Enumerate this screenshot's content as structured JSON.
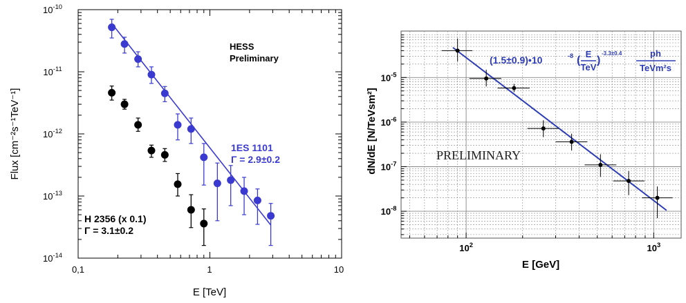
{
  "chart_data": [
    {
      "type": "scatter",
      "title": "",
      "xlabel": "E [TeV]",
      "ylabel": "Flux [cm⁻²s⁻¹TeV⁻¹]",
      "xscale": "log",
      "yscale": "log",
      "xlim": [
        0.1,
        10
      ],
      "ylim": [
        1e-14,
        1e-10
      ],
      "x_tick_labels": [
        "0,1",
        "1",
        "10"
      ],
      "y_tick_exponents": [
        "-14",
        "-13",
        "-12",
        "-11",
        "-10"
      ],
      "grid": false,
      "annotations": [
        "HESS",
        "Preliminary"
      ],
      "series": [
        {
          "name": "1ES 1101",
          "label_line2": "Γ = 2.9±0.2",
          "color": "#3a3ad0",
          "x": [
            0.18,
            0.225,
            0.285,
            0.36,
            0.455,
            0.57,
            0.72,
            0.9,
            1.14,
            1.44,
            1.82,
            2.3,
            2.9
          ],
          "y": [
            5.2e-11,
            2.8e-11,
            1.6e-11,
            9e-12,
            4.5e-12,
            1.4e-12,
            1.2e-12,
            4.2e-13,
            1.6e-13,
            1.8e-13,
            1.2e-13,
            8.5e-14,
            4.8e-14
          ],
          "y_low": [
            3.5e-11,
            2e-11,
            1.2e-11,
            6.5e-12,
            3.3e-12,
            8e-13,
            7e-13,
            1.5e-13,
            4e-14,
            7e-14,
            5e-14,
            3.5e-14,
            1.6e-14
          ],
          "y_high": [
            7e-11,
            3.6e-11,
            2.1e-11,
            1.2e-11,
            5.8e-12,
            2.1e-12,
            1.8e-12,
            7e-13,
            3.4e-13,
            3.1e-13,
            2e-13,
            1.3e-13,
            7.6e-14
          ],
          "fit": {
            "x": [
              0.18,
              2.9
            ],
            "y": [
              6e-11,
              3.4e-14
            ]
          }
        },
        {
          "name": "H 2356 (x 0.1)",
          "label_line2": "Γ = 3.1±0.2",
          "color": "#000000",
          "x": [
            0.18,
            0.225,
            0.285,
            0.36,
            0.455,
            0.57,
            0.72,
            0.9
          ],
          "y": [
            4.6e-12,
            3e-12,
            1.4e-12,
            5.4e-13,
            4.6e-13,
            1.55e-13,
            6e-14,
            3.6e-14
          ],
          "y_low": [
            3.5e-12,
            2.5e-12,
            1.1e-12,
            4.2e-13,
            3.6e-13,
            1e-13,
            3.1e-14,
            1.6e-14
          ],
          "y_high": [
            5.9e-12,
            3.6e-12,
            1.8e-12,
            6.6e-13,
            5.8e-13,
            2.3e-13,
            1.05e-13,
            6.2e-14
          ]
        }
      ]
    },
    {
      "type": "scatter",
      "title": "",
      "xlabel": "E [GeV]",
      "ylabel": "dN/dE [N/TeVsm²]",
      "xscale": "log",
      "yscale": "log",
      "xlim": [
        45,
        1400
      ],
      "ylim": [
        2.5e-09,
        0.00011
      ],
      "x_tick_exponents": [
        "2",
        "3"
      ],
      "y_tick_exponents": [
        "-5",
        "-6",
        "-7",
        "-8"
      ],
      "grid": true,
      "annotations": [
        "PRELIMINARY"
      ],
      "formula": {
        "prefix": "(1.5±0.9)•10",
        "prefix_exp": "-8",
        "paren_open": "(",
        "frac_num": "E",
        "frac_den": "TeV",
        "paren_close": ")",
        "index": "-3.3±0.4",
        "unit_num": "ph",
        "unit_den": "TeVm²s"
      },
      "series": [
        {
          "name": "",
          "color": "#000000",
          "x": [
            90,
            128,
            180,
            258,
            365,
            520,
            735,
            1045
          ],
          "y": [
            4e-05,
            9.5e-06,
            5.8e-06,
            7.2e-07,
            3.6e-07,
            1.1e-07,
            4.8e-08,
            2e-08
          ],
          "y_low": [
            2.3e-05,
            6.3e-06,
            4.7e-06,
            4.6e-07,
            2.3e-07,
            5.9e-08,
            2.3e-08,
            7e-09
          ],
          "y_high": [
            7.5e-05,
            1.5e-05,
            7.2e-06,
            1.1e-06,
            5.5e-07,
            1.9e-07,
            8e-08,
            3.6e-08
          ],
          "x_low": [
            74,
            104,
            147,
            212,
            300,
            428,
            608,
            865
          ],
          "x_high": [
            108,
            154,
            218,
            312,
            443,
            632,
            892,
            1260
          ]
        }
      ],
      "fit": {
        "x": [
          85,
          1170
        ],
        "y": [
          4.7e-05,
          1.05e-08
        ],
        "color": "#2b3bb5"
      }
    }
  ]
}
